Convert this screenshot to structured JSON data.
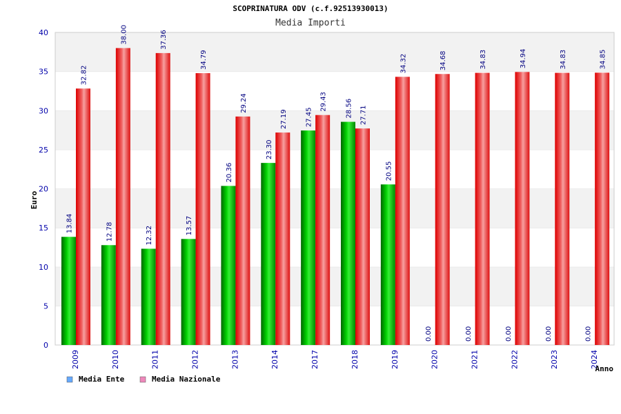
{
  "chart_data": {
    "type": "bar",
    "title": "SCOPRINATURA ODV (c.f.92513930013)",
    "subtitle": "Media Importi",
    "xlabel": "Anno",
    "ylabel": "Euro",
    "ylim": [
      0,
      40
    ],
    "yticks": [
      0,
      5,
      10,
      15,
      20,
      25,
      30,
      35,
      40
    ],
    "grid": "horizontal-bands",
    "legend_position": "bottom-left",
    "categories": [
      "2009",
      "2010",
      "2011",
      "2012",
      "2013",
      "2014",
      "2017",
      "2018",
      "2019",
      "2020",
      "2021",
      "2022",
      "2023",
      "2024"
    ],
    "series": [
      {
        "name": "Media Ente",
        "color": "#00aa00",
        "legend_color": "#66aaff",
        "values": [
          13.84,
          12.78,
          12.32,
          13.57,
          20.36,
          23.3,
          27.45,
          28.56,
          20.55,
          0.0,
          0.0,
          0.0,
          0.0,
          0.0
        ],
        "labels": [
          "13.84",
          "12.78",
          "12.32",
          "13.57",
          "20.36",
          "23.30",
          "27.45",
          "28.56",
          "20.55",
          "0.00",
          "0.00",
          "0.00",
          "0.00",
          "0.00"
        ]
      },
      {
        "name": "Media Nazionale",
        "color": "#ee1111",
        "legend_color": "#ee88bb",
        "values": [
          32.82,
          38.0,
          37.36,
          34.79,
          29.24,
          27.19,
          29.43,
          27.71,
          34.32,
          34.68,
          34.83,
          34.94,
          34.83,
          34.85
        ],
        "labels": [
          "32.82",
          "38.00",
          "37.36",
          "34.79",
          "29.24",
          "27.19",
          "29.43",
          "27.71",
          "34.32",
          "34.68",
          "34.83",
          "34.94",
          "34.83",
          "34.85"
        ]
      }
    ]
  }
}
